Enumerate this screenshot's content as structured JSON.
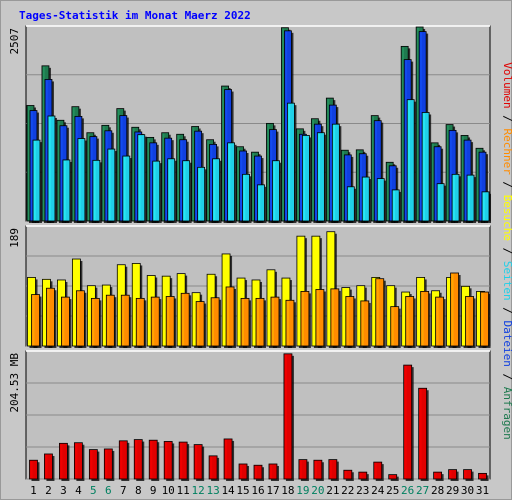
{
  "title": "Tages-Statistik im Monat Maerz 2022",
  "colors": {
    "background": "#c8c8c8",
    "plot_area": "#c0c0c0",
    "title": "#0000ff",
    "anfragen": "#1f7a4f",
    "dateien": "#1040e0",
    "seiten": "#20d0e8",
    "besuche": "#ffff00",
    "rechner": "#ff8c00",
    "volumen": "#e00000",
    "weekend_label": "#008060",
    "weekday_label": "#000000"
  },
  "chart_data": [
    {
      "type": "bar",
      "panel": "top",
      "ymax_label": "2507",
      "ylim": [
        0,
        2507
      ],
      "grid": true,
      "legend_placement": "right (vertical)",
      "legend_separator": " / ",
      "series": [
        {
          "name": "Anfragen",
          "color": "#1f7a4f",
          "values": [
            1485,
            1995,
            1295,
            1470,
            1135,
            1230,
            1445,
            1205,
            1075,
            1135,
            1115,
            1215,
            1045,
            1735,
            955,
            885,
            1255,
            2485,
            1185,
            1315,
            1580,
            910,
            915,
            1355,
            755,
            2245,
            2505,
            1005,
            1240,
            1100,
            935
          ]
        },
        {
          "name": "Dateien",
          "color": "#1040e0",
          "values": [
            1420,
            1820,
            1225,
            1345,
            1085,
            1160,
            1355,
            1145,
            1005,
            1065,
            1045,
            1155,
            985,
            1690,
            900,
            835,
            1175,
            2445,
            1115,
            1245,
            1490,
            850,
            865,
            1290,
            710,
            2075,
            2435,
            955,
            1165,
            1040,
            885
          ]
        },
        {
          "name": "Seiten",
          "color": "#20d0e8",
          "values": [
            1040,
            1350,
            785,
            1060,
            780,
            925,
            835,
            1110,
            770,
            800,
            775,
            690,
            800,
            1005,
            600,
            465,
            775,
            1515,
            1100,
            1135,
            1245,
            440,
            565,
            545,
            400,
            1560,
            1395,
            480,
            600,
            590,
            375
          ]
        }
      ]
    },
    {
      "type": "bar",
      "panel": "middle",
      "ymax_label": "189",
      "ylim": [
        0,
        189
      ],
      "grid": true,
      "series": [
        {
          "name": "Besuche",
          "color": "#ffff00",
          "values": [
            108,
            105,
            104,
            137,
            95,
            96,
            128,
            130,
            111,
            110,
            114,
            84,
            113,
            145,
            107,
            104,
            120,
            107,
            173,
            173,
            180,
            92,
            95,
            108,
            95,
            85,
            108,
            87,
            108,
            94,
            86
          ]
        },
        {
          "name": "Rechner",
          "color": "#ff8c00",
          "values": [
            81,
            91,
            77,
            87,
            75,
            80,
            80,
            75,
            77,
            78,
            83,
            70,
            76,
            93,
            75,
            75,
            77,
            72,
            86,
            89,
            90,
            78,
            71,
            106,
            62,
            78,
            86,
            77,
            115,
            78,
            85
          ]
        }
      ]
    },
    {
      "type": "bar",
      "panel": "bottom",
      "ymax_label": "204.53 MB",
      "ylim": [
        0,
        204.53
      ],
      "unit": "MB",
      "grid": true,
      "series": [
        {
          "name": "Volumen",
          "color": "#e00000",
          "values": [
            30,
            40,
            57,
            58,
            47,
            48,
            61,
            63,
            62,
            60,
            59,
            55,
            37,
            64,
            24,
            22,
            24,
            200,
            31,
            30,
            31,
            14,
            11,
            27,
            7,
            182,
            145,
            11,
            15,
            15,
            9
          ]
        }
      ]
    }
  ],
  "x_axis": {
    "categories": [
      "1",
      "2",
      "3",
      "4",
      "5",
      "6",
      "7",
      "8",
      "9",
      "10",
      "11",
      "12",
      "13",
      "14",
      "15",
      "16",
      "17",
      "18",
      "19",
      "20",
      "21",
      "22",
      "23",
      "24",
      "25",
      "26",
      "27",
      "28",
      "29",
      "30",
      "31"
    ],
    "weekend_days": [
      "5",
      "6",
      "12",
      "13",
      "19",
      "20",
      "26",
      "27"
    ]
  }
}
